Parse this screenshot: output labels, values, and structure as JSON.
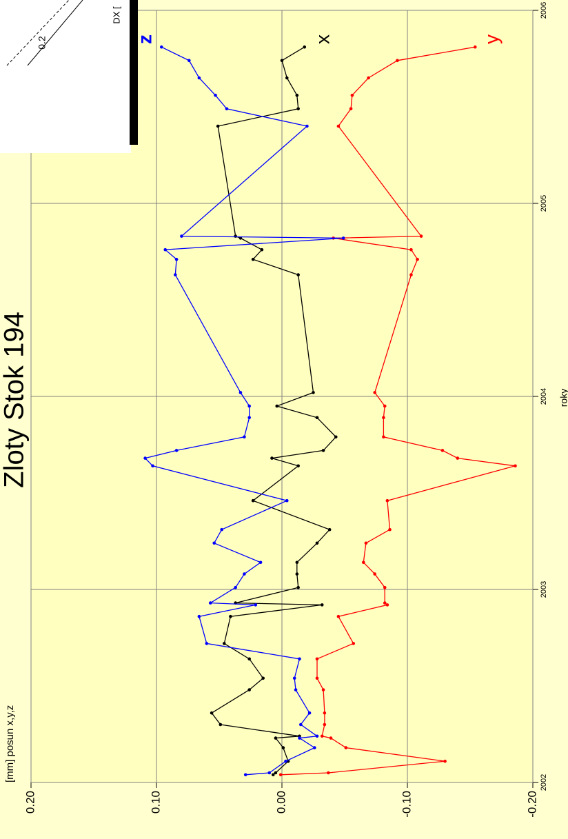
{
  "chart_data": {
    "type": "line",
    "title": "Zloty Stok 194",
    "y_label": "[mm] posun x,y,z",
    "x_label": "roky",
    "x": [
      2002.04,
      2002.05,
      2002.11,
      2002.18,
      2002.23,
      2002.24,
      2002.3,
      2002.36,
      2002.48,
      2002.54,
      2002.64,
      2002.72,
      2002.86,
      2002.92,
      2002.93,
      2003.01,
      2003.08,
      2003.14,
      2003.24,
      2003.31,
      2003.46,
      2003.64,
      2003.68,
      2003.72,
      2003.79,
      2003.89,
      2003.95,
      2004.02,
      2004.63,
      2004.71,
      2004.76,
      2004.82,
      2004.83,
      2005.4,
      2005.49,
      2005.56,
      2005.65,
      2005.74,
      2005.81
    ],
    "series": [
      {
        "name": "x",
        "color": "#000000",
        "values": [
          0.007,
          0.005,
          -0.005,
          -0.001,
          0.005,
          -0.014,
          0.049,
          0.056,
          0.026,
          0.015,
          0.026,
          0.046,
          0.041,
          -0.032,
          0.037,
          -0.013,
          -0.012,
          -0.012,
          -0.028,
          -0.038,
          0.023,
          -0.013,
          0.008,
          -0.033,
          -0.043,
          -0.028,
          0.004,
          -0.025,
          -0.013,
          0.023,
          0.016,
          0.033,
          0.037,
          0.051,
          -0.013,
          -0.012,
          -0.004,
          0.0,
          -0.018
        ]
      },
      {
        "name": "y",
        "color": "#ff0000",
        "values": [
          0.001,
          -0.037,
          -0.13,
          -0.051,
          -0.039,
          -0.032,
          -0.034,
          -0.034,
          -0.033,
          -0.028,
          -0.028,
          -0.057,
          -0.045,
          -0.084,
          -0.082,
          -0.082,
          -0.074,
          -0.065,
          -0.067,
          -0.086,
          -0.084,
          -0.186,
          -0.14,
          -0.128,
          -0.081,
          -0.081,
          -0.082,
          -0.074,
          -0.103,
          -0.108,
          -0.103,
          -0.041,
          -0.111,
          -0.045,
          -0.055,
          -0.056,
          -0.069,
          -0.092,
          -0.154
        ]
      },
      {
        "name": "z",
        "color": "#0000ff",
        "values": [
          0.029,
          0.01,
          -0.003,
          -0.026,
          -0.014,
          -0.028,
          -0.015,
          -0.022,
          -0.011,
          -0.01,
          -0.014,
          0.06,
          0.066,
          0.021,
          0.057,
          0.037,
          0.03,
          0.017,
          0.054,
          0.048,
          -0.004,
          0.103,
          0.109,
          0.084,
          0.03,
          0.026,
          0.026,
          0.033,
          0.085,
          0.084,
          0.093,
          -0.049,
          0.08,
          -0.02,
          0.044,
          0.053,
          0.066,
          0.074,
          0.096
        ]
      }
    ],
    "xlim": [
      2002,
      2006
    ],
    "xticks": [
      2002,
      2003,
      2004,
      2005,
      2006
    ],
    "ylim": [
      -0.2,
      0.2
    ],
    "yticks": [
      {
        "value": 0.2,
        "label": "0.20"
      },
      {
        "value": 0.1,
        "label": "0.10"
      },
      {
        "value": 0,
        "label": "0.00"
      },
      {
        "value": -0.1,
        "label": "-0.10"
      },
      {
        "value": -0.2,
        "label": "-0.20"
      }
    ],
    "grid": true,
    "inset": {
      "labels": [
        "DX [",
        "0.2"
      ]
    }
  }
}
